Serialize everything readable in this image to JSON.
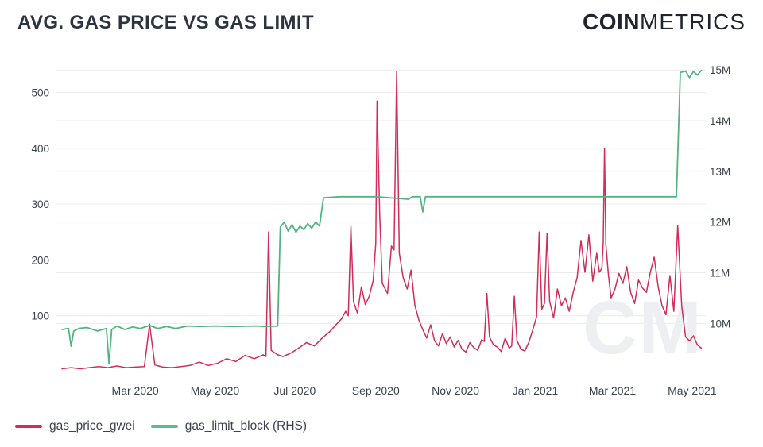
{
  "header": {
    "title": "AVG. GAS PRICE VS GAS LIMIT",
    "logo_bold": "COIN",
    "logo_light": "METRICS"
  },
  "watermark": "CM",
  "colors": {
    "gas_price": "#d12d56",
    "gas_limit": "#57b985",
    "grid": "#ececec",
    "text_dark": "#2d3440",
    "text_tick": "#3c434d"
  },
  "legend": [
    {
      "label": "gas_price_gwei",
      "color": "#d12d56"
    },
    {
      "label": "gas_limit_block (RHS)",
      "color": "#5abc8a"
    }
  ],
  "chart_data": {
    "type": "line",
    "title": "AVG. GAS PRICE VS GAS LIMIT",
    "grid": "horizontal",
    "legend_position": "bottom-left",
    "x_axis": {
      "start_date": "2020-01-05",
      "end_date": "2021-05-09",
      "ticks": [
        {
          "date": "2020-03-01",
          "label": "Mar 2020"
        },
        {
          "date": "2020-05-01",
          "label": "May 2020"
        },
        {
          "date": "2020-07-01",
          "label": "Jul 2020"
        },
        {
          "date": "2020-09-01",
          "label": "Sep 2020"
        },
        {
          "date": "2020-11-01",
          "label": "Nov 2020"
        },
        {
          "date": "2021-01-01",
          "label": "Jan 2021"
        },
        {
          "date": "2021-03-01",
          "label": "Mar 2021"
        },
        {
          "date": "2021-05-01",
          "label": "May 2021"
        }
      ]
    },
    "y_axis_left": {
      "min": 0,
      "max": 545,
      "ticks": [
        100,
        200,
        300,
        400,
        500
      ]
    },
    "y_axis_right": {
      "min": 9.05,
      "max": 15.05,
      "unit": "M",
      "ticks": [
        {
          "value": 10,
          "label": "10M"
        },
        {
          "value": 11,
          "label": "11M"
        },
        {
          "value": 12,
          "label": "12M"
        },
        {
          "value": 13,
          "label": "13M"
        },
        {
          "value": 14,
          "label": "14M"
        },
        {
          "value": 15,
          "label": "15M"
        }
      ]
    },
    "series": [
      {
        "name": "gas_price_gwei",
        "axis": "left",
        "unit": "gwei",
        "color": "#d12d56",
        "points": [
          [
            "2020-01-05",
            5
          ],
          [
            "2020-01-12",
            7
          ],
          [
            "2020-01-19",
            5
          ],
          [
            "2020-01-26",
            7
          ],
          [
            "2020-02-02",
            9
          ],
          [
            "2020-02-09",
            7
          ],
          [
            "2020-02-16",
            10
          ],
          [
            "2020-02-23",
            7
          ],
          [
            "2020-03-01",
            8
          ],
          [
            "2020-03-08",
            9
          ],
          [
            "2020-03-12",
            85
          ],
          [
            "2020-03-16",
            12
          ],
          [
            "2020-03-22",
            8
          ],
          [
            "2020-03-29",
            7
          ],
          [
            "2020-04-05",
            9
          ],
          [
            "2020-04-12",
            11
          ],
          [
            "2020-04-19",
            17
          ],
          [
            "2020-04-26",
            11
          ],
          [
            "2020-05-03",
            15
          ],
          [
            "2020-05-10",
            23
          ],
          [
            "2020-05-17",
            18
          ],
          [
            "2020-05-24",
            29
          ],
          [
            "2020-05-31",
            23
          ],
          [
            "2020-06-07",
            30
          ],
          [
            "2020-06-09",
            27
          ],
          [
            "2020-06-11",
            250
          ],
          [
            "2020-06-13",
            38
          ],
          [
            "2020-06-18",
            30
          ],
          [
            "2020-06-22",
            27
          ],
          [
            "2020-06-28",
            33
          ],
          [
            "2020-07-04",
            42
          ],
          [
            "2020-07-10",
            52
          ],
          [
            "2020-07-16",
            46
          ],
          [
            "2020-07-22",
            60
          ],
          [
            "2020-07-28",
            72
          ],
          [
            "2020-08-02",
            85
          ],
          [
            "2020-08-06",
            95
          ],
          [
            "2020-08-09",
            108
          ],
          [
            "2020-08-11",
            100
          ],
          [
            "2020-08-13",
            260
          ],
          [
            "2020-08-15",
            125
          ],
          [
            "2020-08-18",
            105
          ],
          [
            "2020-08-21",
            152
          ],
          [
            "2020-08-24",
            120
          ],
          [
            "2020-08-27",
            135
          ],
          [
            "2020-08-30",
            163
          ],
          [
            "2020-09-01",
            230
          ],
          [
            "2020-09-02",
            485
          ],
          [
            "2020-09-04",
            283
          ],
          [
            "2020-09-06",
            158
          ],
          [
            "2020-09-10",
            140
          ],
          [
            "2020-09-13",
            225
          ],
          [
            "2020-09-15",
            218
          ],
          [
            "2020-09-17",
            538
          ],
          [
            "2020-09-19",
            212
          ],
          [
            "2020-09-22",
            168
          ],
          [
            "2020-09-25",
            148
          ],
          [
            "2020-09-28",
            182
          ],
          [
            "2020-10-01",
            118
          ],
          [
            "2020-10-04",
            92
          ],
          [
            "2020-10-07",
            75
          ],
          [
            "2020-10-10",
            60
          ],
          [
            "2020-10-13",
            84
          ],
          [
            "2020-10-16",
            55
          ],
          [
            "2020-10-19",
            46
          ],
          [
            "2020-10-22",
            68
          ],
          [
            "2020-10-25",
            50
          ],
          [
            "2020-10-28",
            62
          ],
          [
            "2020-10-31",
            44
          ],
          [
            "2020-11-03",
            56
          ],
          [
            "2020-11-06",
            40
          ],
          [
            "2020-11-09",
            35
          ],
          [
            "2020-11-12",
            52
          ],
          [
            "2020-11-15",
            43
          ],
          [
            "2020-11-18",
            38
          ],
          [
            "2020-11-21",
            57
          ],
          [
            "2020-11-23",
            54
          ],
          [
            "2020-11-25",
            140
          ],
          [
            "2020-11-27",
            62
          ],
          [
            "2020-11-30",
            48
          ],
          [
            "2020-12-03",
            44
          ],
          [
            "2020-12-06",
            36
          ],
          [
            "2020-12-09",
            60
          ],
          [
            "2020-12-12",
            42
          ],
          [
            "2020-12-14",
            46
          ],
          [
            "2020-12-16",
            135
          ],
          [
            "2020-12-18",
            56
          ],
          [
            "2020-12-21",
            40
          ],
          [
            "2020-12-24",
            37
          ],
          [
            "2020-12-27",
            52
          ],
          [
            "2020-12-30",
            74
          ],
          [
            "2021-01-02",
            98
          ],
          [
            "2021-01-04",
            250
          ],
          [
            "2021-01-06",
            112
          ],
          [
            "2021-01-08",
            122
          ],
          [
            "2021-01-10",
            248
          ],
          [
            "2021-01-12",
            126
          ],
          [
            "2021-01-15",
            96
          ],
          [
            "2021-01-18",
            148
          ],
          [
            "2021-01-21",
            118
          ],
          [
            "2021-01-24",
            132
          ],
          [
            "2021-01-27",
            108
          ],
          [
            "2021-01-30",
            142
          ],
          [
            "2021-02-02",
            168
          ],
          [
            "2021-02-05",
            235
          ],
          [
            "2021-02-08",
            178
          ],
          [
            "2021-02-11",
            245
          ],
          [
            "2021-02-14",
            162
          ],
          [
            "2021-02-17",
            212
          ],
          [
            "2021-02-19",
            178
          ],
          [
            "2021-02-21",
            185
          ],
          [
            "2021-02-22",
            232
          ],
          [
            "2021-02-23",
            400
          ],
          [
            "2021-02-24",
            228
          ],
          [
            "2021-02-26",
            172
          ],
          [
            "2021-02-28",
            132
          ],
          [
            "2021-03-03",
            148
          ],
          [
            "2021-03-06",
            176
          ],
          [
            "2021-03-09",
            158
          ],
          [
            "2021-03-12",
            188
          ],
          [
            "2021-03-15",
            142
          ],
          [
            "2021-03-18",
            122
          ],
          [
            "2021-03-21",
            164
          ],
          [
            "2021-03-24",
            150
          ],
          [
            "2021-03-27",
            142
          ],
          [
            "2021-03-30",
            178
          ],
          [
            "2021-04-02",
            205
          ],
          [
            "2021-04-05",
            152
          ],
          [
            "2021-04-08",
            118
          ],
          [
            "2021-04-11",
            102
          ],
          [
            "2021-04-14",
            172
          ],
          [
            "2021-04-17",
            108
          ],
          [
            "2021-04-20",
            262
          ],
          [
            "2021-04-23",
            118
          ],
          [
            "2021-04-26",
            62
          ],
          [
            "2021-04-29",
            55
          ],
          [
            "2021-05-02",
            64
          ],
          [
            "2021-05-05",
            48
          ],
          [
            "2021-05-08",
            42
          ]
        ]
      },
      {
        "name": "gas_limit_block (RHS)",
        "axis": "right",
        "unit": "M gas",
        "color": "#52b481",
        "points": [
          [
            "2020-01-05",
            9.88
          ],
          [
            "2020-01-10",
            9.9
          ],
          [
            "2020-01-12",
            9.55
          ],
          [
            "2020-01-14",
            9.85
          ],
          [
            "2020-01-18",
            9.9
          ],
          [
            "2020-01-24",
            9.92
          ],
          [
            "2020-02-01",
            9.85
          ],
          [
            "2020-02-08",
            9.9
          ],
          [
            "2020-02-10",
            9.2
          ],
          [
            "2020-02-12",
            9.88
          ],
          [
            "2020-02-16",
            9.95
          ],
          [
            "2020-02-22",
            9.88
          ],
          [
            "2020-02-28",
            9.93
          ],
          [
            "2020-03-05",
            9.9
          ],
          [
            "2020-03-12",
            9.96
          ],
          [
            "2020-03-18",
            9.9
          ],
          [
            "2020-03-25",
            9.94
          ],
          [
            "2020-04-01",
            9.9
          ],
          [
            "2020-04-10",
            9.95
          ],
          [
            "2020-04-20",
            9.94
          ],
          [
            "2020-05-01",
            9.95
          ],
          [
            "2020-05-15",
            9.94
          ],
          [
            "2020-06-01",
            9.95
          ],
          [
            "2020-06-10",
            9.94
          ],
          [
            "2020-06-18",
            9.95
          ],
          [
            "2020-06-20",
            11.9
          ],
          [
            "2020-06-23",
            12.0
          ],
          [
            "2020-06-26",
            11.82
          ],
          [
            "2020-06-29",
            11.95
          ],
          [
            "2020-07-02",
            11.8
          ],
          [
            "2020-07-05",
            11.92
          ],
          [
            "2020-07-08",
            11.85
          ],
          [
            "2020-07-11",
            11.97
          ],
          [
            "2020-07-14",
            11.88
          ],
          [
            "2020-07-17",
            12.0
          ],
          [
            "2020-07-20",
            11.92
          ],
          [
            "2020-07-23",
            12.48
          ],
          [
            "2020-08-05",
            12.5
          ],
          [
            "2020-09-01",
            12.5
          ],
          [
            "2020-09-26",
            12.45
          ],
          [
            "2020-09-29",
            12.5
          ],
          [
            "2020-10-05",
            12.5
          ],
          [
            "2020-10-07",
            12.2
          ],
          [
            "2020-10-09",
            12.5
          ],
          [
            "2020-11-01",
            12.5
          ],
          [
            "2020-12-01",
            12.5
          ],
          [
            "2021-01-01",
            12.5
          ],
          [
            "2021-02-01",
            12.5
          ],
          [
            "2021-03-01",
            12.5
          ],
          [
            "2021-04-01",
            12.5
          ],
          [
            "2021-04-19",
            12.5
          ],
          [
            "2021-04-22",
            14.95
          ],
          [
            "2021-04-26",
            14.98
          ],
          [
            "2021-04-29",
            14.85
          ],
          [
            "2021-05-02",
            14.97
          ],
          [
            "2021-05-05",
            14.9
          ],
          [
            "2021-05-08",
            14.99
          ]
        ]
      }
    ]
  }
}
